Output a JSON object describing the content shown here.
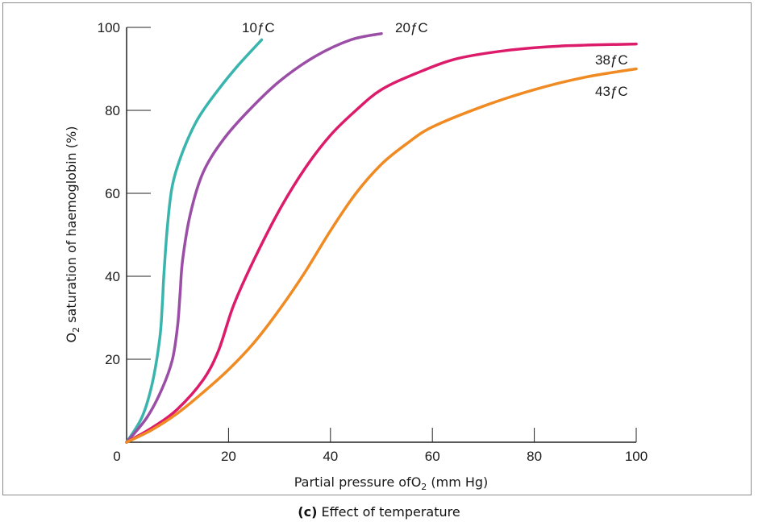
{
  "caption": {
    "letter": "(c)",
    "text": " Effect of temperature"
  },
  "chart_data": {
    "type": "line",
    "xlabel": {
      "prefix": "Partial pressure of",
      "main": "O",
      "sub": "2",
      "suffix": " (mm Hg)"
    },
    "ylabel": {
      "main": "O",
      "sub": "2",
      "suffix": " saturation of haemoglobin (%)"
    },
    "xlim": [
      0,
      100
    ],
    "ylim": [
      0,
      100
    ],
    "x_ticks": [
      "20",
      "40",
      "60",
      "80",
      "100"
    ],
    "x_tick_values": [
      20,
      40,
      60,
      80,
      100
    ],
    "y_ticks": [
      "20",
      "40",
      "60",
      "80",
      "100"
    ],
    "y_tick_values": [
      20,
      40,
      60,
      80,
      100
    ],
    "origin_label": "0",
    "grid": false,
    "series": [
      {
        "name": "10ƒC",
        "color": "#3ab5ae",
        "x": [
          0,
          3,
          5,
          6.5,
          7,
          7.3,
          8,
          9,
          11,
          14,
          18,
          22,
          26.5
        ],
        "y": [
          0,
          6,
          14,
          25,
          33,
          40,
          52,
          62,
          70,
          78,
          85,
          91,
          97
        ]
      },
      {
        "name": "20ƒC",
        "color": "#9b4ea6",
        "x": [
          0,
          4,
          7,
          9,
          10,
          10.5,
          11,
          12.5,
          15,
          19,
          24,
          30,
          37,
          44,
          50
        ],
        "y": [
          0,
          6,
          13,
          20,
          28,
          36,
          44,
          55,
          65,
          73,
          80,
          87,
          93,
          97,
          98.5
        ]
      },
      {
        "name": "38ƒC",
        "color": "#dd1b6b",
        "x": [
          0,
          5,
          10,
          15,
          18,
          21,
          25,
          30,
          35,
          40,
          45,
          50,
          57,
          65,
          75,
          85,
          100
        ],
        "y": [
          0,
          3.5,
          8,
          15,
          22,
          33,
          44,
          56,
          66,
          74,
          80,
          85,
          89,
          92.5,
          94.5,
          95.5,
          96
        ]
      },
      {
        "name": "43ƒC",
        "color": "#f08a22",
        "x": [
          0,
          5,
          10,
          15,
          20,
          25,
          30,
          35,
          40,
          45,
          50,
          55,
          60,
          70,
          80,
          90,
          100
        ],
        "y": [
          0,
          3,
          7,
          12,
          17.5,
          24,
          32,
          41,
          51,
          60,
          67,
          72,
          76,
          81,
          85,
          88,
          90
        ]
      }
    ]
  }
}
